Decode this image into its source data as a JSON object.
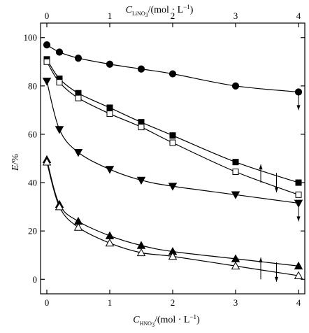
{
  "chart_data": {
    "type": "scatter",
    "ylabel": "E/%",
    "xlabel_bottom": "C_HNO3/(mol·L⁻¹)",
    "xlabel_top": "C_LiNO3/(mol·L⁻¹)",
    "xlabel_bottom_parts": {
      "main": "C",
      "sub": "HNO",
      "sub2": "3",
      "unit": "/(mol · L",
      "sup": "−1",
      "close": ")"
    },
    "xlabel_top_parts": {
      "main": "C",
      "sub": "LiNO",
      "sub2": "3",
      "unit": "/(mol · L",
      "sup": "−1",
      "close": ")"
    },
    "ylabel_parts": {
      "main": "E",
      "unit": "/%"
    },
    "xlim": [
      -0.1,
      4.1
    ],
    "ylim": [
      -6,
      106
    ],
    "x_ticks": [
      0,
      1,
      2,
      3,
      4
    ],
    "y_ticks": [
      0,
      20,
      40,
      60,
      80,
      100
    ],
    "x_tick_labels": [
      "0",
      "1",
      "2",
      "3",
      "4"
    ],
    "y_tick_labels": [
      "0",
      "20",
      "40",
      "60",
      "80",
      "100"
    ],
    "series": [
      {
        "marker": "circle",
        "filled": true,
        "x": [
          0,
          0.2,
          0.5,
          1.0,
          1.5,
          2.0,
          3.0,
          4.0
        ],
        "y": [
          97,
          94,
          91.5,
          89,
          87,
          85,
          80,
          77.5
        ]
      },
      {
        "marker": "square",
        "filled": true,
        "x": [
          0,
          0.2,
          0.5,
          1.0,
          1.5,
          2.0,
          3.0,
          4.0
        ],
        "y": [
          91,
          83,
          77,
          71,
          65,
          59.5,
          48.5,
          40
        ]
      },
      {
        "marker": "square",
        "filled": false,
        "x": [
          0,
          0.2,
          0.5,
          1.0,
          1.5,
          2.0,
          3.0,
          4.0
        ],
        "y": [
          90,
          81.5,
          75,
          68.5,
          63,
          56.5,
          44.5,
          35
        ]
      },
      {
        "marker": "triangle-down",
        "filled": true,
        "x": [
          0,
          0.2,
          0.5,
          1.0,
          1.5,
          2.0,
          3.0,
          4.0
        ],
        "y": [
          82,
          62,
          52.5,
          45.5,
          41,
          38.5,
          35,
          31.5
        ]
      },
      {
        "marker": "triangle-up",
        "filled": true,
        "x": [
          0,
          0.2,
          0.5,
          1.0,
          1.5,
          2.0,
          3.0,
          4.0
        ],
        "y": [
          49.5,
          31,
          24,
          18,
          14,
          11.5,
          8.5,
          5.5
        ]
      },
      {
        "marker": "triangle-up",
        "filled": false,
        "x": [
          0,
          0.2,
          0.5,
          1.0,
          1.5,
          2.0,
          3.0,
          4.0
        ],
        "y": [
          48.5,
          30,
          21.5,
          15,
          11,
          9.5,
          5.5,
          1.5
        ]
      }
    ],
    "annotations": [
      {
        "type": "arrow",
        "direction": "down",
        "x": 4.0,
        "y_from": 77,
        "y_to": 70
      },
      {
        "type": "arrow",
        "direction": "up",
        "x": 3.4,
        "y_from": 40,
        "y_to": 47.5
      },
      {
        "type": "arrow",
        "direction": "down",
        "x": 3.65,
        "y_from": 44,
        "y_to": 36
      },
      {
        "type": "arrow",
        "direction": "down",
        "x": 4.0,
        "y_from": 31,
        "y_to": 24
      },
      {
        "type": "arrow",
        "direction": "up",
        "x": 3.4,
        "y_from": 0,
        "y_to": 9
      },
      {
        "type": "arrow",
        "direction": "down",
        "x": 3.65,
        "y_from": 7,
        "y_to": -1
      }
    ],
    "grid": false,
    "legend": "none"
  }
}
